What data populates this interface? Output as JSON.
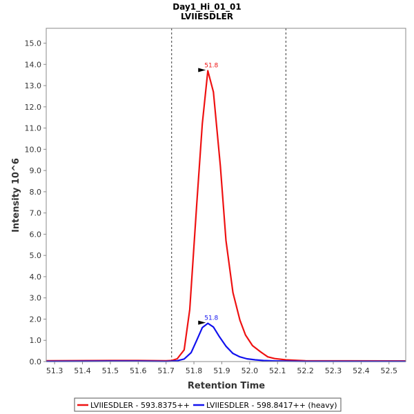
{
  "chart_data": {
    "type": "line",
    "title": "Day1_Hi_01_01",
    "subtitle": "LVIIESDLER",
    "xlabel": "Retention Time",
    "ylabel": "Intensity 10^6",
    "xlim": [
      51.27,
      52.56
    ],
    "ylim": [
      0,
      15.7
    ],
    "x_ticks": [
      "51.3",
      "51.4",
      "51.5",
      "51.6",
      "51.7",
      "51.8",
      "51.9",
      "52.0",
      "52.1",
      "52.2",
      "52.3",
      "52.4",
      "52.5"
    ],
    "y_ticks": [
      "0.0",
      "1.0",
      "2.0",
      "3.0",
      "4.0",
      "5.0",
      "6.0",
      "7.0",
      "8.0",
      "9.0",
      "10.0",
      "11.0",
      "12.0",
      "13.0",
      "14.0",
      "15.0"
    ],
    "boundaries": [
      51.72,
      52.13
    ],
    "series": [
      {
        "name": "LVIIESDLER - 593.8375++",
        "color": "#ee1111",
        "peak_label": "51.8",
        "peak_x": 51.85,
        "peak_y": 13.7,
        "x": [
          51.27,
          51.5,
          51.6,
          51.7,
          51.72,
          51.74,
          51.765,
          51.785,
          51.81,
          51.83,
          51.85,
          51.87,
          51.895,
          51.915,
          51.94,
          51.965,
          51.985,
          52.01,
          52.04,
          52.065,
          52.09,
          52.13,
          52.2,
          52.56
        ],
        "y": [
          0.04,
          0.05,
          0.05,
          0.04,
          0.05,
          0.13,
          0.55,
          2.45,
          7.4,
          11.2,
          13.7,
          12.7,
          9.2,
          5.7,
          3.25,
          1.95,
          1.25,
          0.75,
          0.45,
          0.22,
          0.14,
          0.08,
          0.04,
          0.03
        ]
      },
      {
        "name": "LVIIESDLER - 598.8417++ (heavy)",
        "color": "#1111ee",
        "peak_label": "51.8",
        "peak_x": 51.85,
        "peak_y": 1.8,
        "x": [
          51.27,
          51.5,
          51.6,
          51.7,
          51.72,
          51.74,
          51.765,
          51.79,
          51.81,
          51.83,
          51.85,
          51.87,
          51.89,
          51.915,
          51.94,
          51.965,
          51.99,
          52.02,
          52.05,
          52.09,
          52.13,
          52.2,
          52.56
        ],
        "y": [
          0.01,
          0.02,
          0.02,
          0.01,
          0.02,
          0.04,
          0.12,
          0.42,
          1.0,
          1.6,
          1.8,
          1.63,
          1.2,
          0.72,
          0.38,
          0.22,
          0.13,
          0.08,
          0.05,
          0.03,
          0.02,
          0.01,
          0.01
        ]
      }
    ]
  }
}
